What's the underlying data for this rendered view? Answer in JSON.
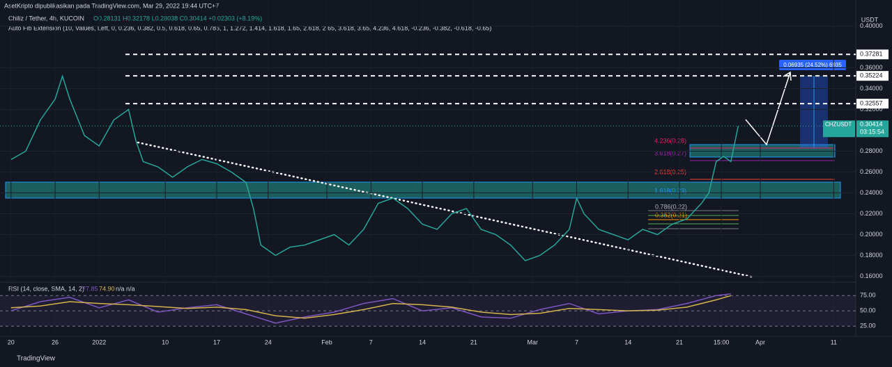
{
  "header": {
    "publisher": "AsetKripto dipublikasikan pada TradingView.com, Mar 29, 2022 19:44 UTC+7",
    "symbol_line": "Chiliz / Tether, 4h, KUCOIN",
    "ohlc": "O0.28131 H0.32178 L0.28038 C0.30414 +0.02303 (+8.19%)",
    "indicator": "Auto Fib Extension (10, Values, Left, 0, 0.236, 0.382, 0.5, 0.618, 0.65, 0.786, 1, 1.272, 1.414, 1.618, 1.65, 2.618, 2.65, 3.618, 3.65, 4.236, 4.618, -0.236, -0.382, -0.618, -0.65)",
    "currency": "USDT",
    "logo": "TradingView"
  },
  "annotations": {
    "measure": "0.06935 (24.52%) 6935",
    "fib_labels": [
      "4.236(0.28)",
      "3.618(0.27)",
      "2.618(0.25)",
      "1.618(0.23)",
      "0.786(0.22)",
      "0.382(0.21)"
    ],
    "symbol": "CHZUSDT",
    "countdown": "03:15:54"
  },
  "chart_data": [
    {
      "type": "line",
      "series": [
        {
          "name": "CHZUSDT",
          "color": "#26a69a",
          "x": [
            0,
            2,
            4,
            6,
            7,
            8,
            10,
            12,
            14,
            16,
            17,
            18,
            20,
            22,
            24,
            26,
            28,
            30,
            32,
            33,
            34,
            36,
            38,
            40,
            42,
            44,
            46,
            48,
            50,
            52,
            54,
            56,
            58,
            60,
            62,
            64,
            66,
            68,
            70,
            72,
            74,
            76,
            77,
            78,
            80,
            82,
            84,
            86,
            88,
            90,
            92,
            94,
            95,
            96,
            97,
            98,
            99
          ],
          "values": [
            0.272,
            0.28,
            0.31,
            0.33,
            0.352,
            0.33,
            0.295,
            0.285,
            0.31,
            0.32,
            0.29,
            0.27,
            0.265,
            0.255,
            0.265,
            0.272,
            0.268,
            0.26,
            0.25,
            0.225,
            0.19,
            0.18,
            0.188,
            0.19,
            0.195,
            0.2,
            0.19,
            0.205,
            0.23,
            0.235,
            0.225,
            0.21,
            0.205,
            0.22,
            0.225,
            0.205,
            0.2,
            0.19,
            0.175,
            0.18,
            0.19,
            0.205,
            0.235,
            0.22,
            0.205,
            0.2,
            0.195,
            0.205,
            0.2,
            0.21,
            0.215,
            0.23,
            0.24,
            0.27,
            0.275,
            0.27,
            0.30414
          ]
        }
      ],
      "last_price": 0.30414,
      "levels": [
        0.37281,
        0.35224,
        0.32557
      ],
      "xlim": [
        -1.5,
        115
      ],
      "ylim": [
        0.155,
        0.425
      ],
      "yticks": [
        {
          "value": 0.4,
          "label": "0.40000"
        },
        {
          "value": 0.36,
          "label": "0.36000"
        },
        {
          "value": 0.34,
          "label": "0.34000"
        },
        {
          "value": 0.32,
          "label": "0.32000"
        },
        {
          "value": 0.28,
          "label": "0.28000"
        },
        {
          "value": 0.26,
          "label": "0.26000"
        },
        {
          "value": 0.24,
          "label": "0.24000"
        },
        {
          "value": 0.22,
          "label": "0.22000"
        },
        {
          "value": 0.2,
          "label": "0.20000"
        },
        {
          "value": 0.18,
          "label": "0.18000"
        },
        {
          "value": 0.16,
          "label": "0.16000"
        }
      ],
      "xticks": [
        {
          "value": 0,
          "label": "20"
        },
        {
          "value": 6,
          "label": "26"
        },
        {
          "value": 12,
          "label": "2022"
        },
        {
          "value": 21,
          "label": "10"
        },
        {
          "value": 28,
          "label": "17"
        },
        {
          "value": 35,
          "label": "24"
        },
        {
          "value": 43,
          "label": "Feb"
        },
        {
          "value": 49,
          "label": "7"
        },
        {
          "value": 56,
          "label": "14"
        },
        {
          "value": 63,
          "label": "21"
        },
        {
          "value": 71,
          "label": "Mar"
        },
        {
          "value": 77,
          "label": "7"
        },
        {
          "value": 84,
          "label": "14"
        },
        {
          "value": 91,
          "label": "21"
        },
        {
          "value": 96.7,
          "label": "15:00"
        },
        {
          "value": 102,
          "label": "Apr"
        },
        {
          "value": 112,
          "label": "11"
        }
      ],
      "grid": true
    },
    {
      "type": "line",
      "title": "RSI (14, close, SMA, 14, 2)",
      "value_labels": [
        "77.85",
        "74.90",
        "n/a n/a"
      ],
      "series": [
        {
          "name": "RSI",
          "color": "#7e57c2",
          "x": [
            0,
            4,
            8,
            12,
            16,
            20,
            24,
            28,
            32,
            36,
            40,
            44,
            48,
            52,
            56,
            60,
            64,
            68,
            72,
            76,
            80,
            84,
            88,
            92,
            96,
            98
          ],
          "values": [
            50,
            65,
            72,
            55,
            68,
            48,
            55,
            60,
            45,
            30,
            40,
            48,
            62,
            70,
            50,
            55,
            40,
            38,
            52,
            62,
            45,
            50,
            52,
            62,
            75,
            77.85
          ]
        },
        {
          "name": "SMA",
          "color": "#d4b44a",
          "x": [
            0,
            4,
            8,
            12,
            16,
            20,
            24,
            28,
            32,
            36,
            40,
            44,
            48,
            52,
            56,
            60,
            64,
            68,
            72,
            76,
            80,
            84,
            88,
            92,
            96,
            98
          ],
          "values": [
            55,
            58,
            65,
            62,
            60,
            57,
            54,
            56,
            52,
            42,
            38,
            44,
            52,
            62,
            60,
            56,
            48,
            44,
            46,
            54,
            52,
            50,
            51,
            56,
            68,
            74.9
          ]
        }
      ],
      "xlim": [
        -1.5,
        115
      ],
      "ylim": [
        15,
        90
      ],
      "yticks": [
        {
          "value": 75,
          "label": "75.00"
        },
        {
          "value": 50,
          "label": "50.00"
        },
        {
          "value": 25,
          "label": "25.00"
        }
      ],
      "grid": true
    }
  ]
}
